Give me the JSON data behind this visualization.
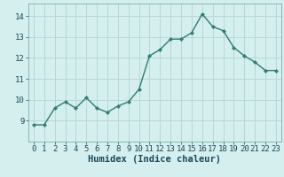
{
  "x": [
    0,
    1,
    2,
    3,
    4,
    5,
    6,
    7,
    8,
    9,
    10,
    11,
    12,
    13,
    14,
    15,
    16,
    17,
    18,
    19,
    20,
    21,
    22,
    23
  ],
  "y": [
    8.8,
    8.8,
    9.6,
    9.9,
    9.6,
    10.1,
    9.6,
    9.4,
    9.7,
    9.9,
    10.5,
    12.1,
    12.4,
    12.9,
    12.9,
    13.2,
    14.1,
    13.5,
    13.3,
    12.5,
    12.1,
    11.8,
    11.4,
    11.4
  ],
  "line_color": "#2e7d72",
  "marker_color": "#2e7d72",
  "bg_color": "#d5eeee",
  "grid_color": "#b8d8d8",
  "xlabel": "Humidex (Indice chaleur)",
  "xlim": [
    -0.5,
    23.5
  ],
  "ylim": [
    8.0,
    14.6
  ],
  "yticks": [
    9,
    10,
    11,
    12,
    13,
    14
  ],
  "xticks": [
    0,
    1,
    2,
    3,
    4,
    5,
    6,
    7,
    8,
    9,
    10,
    11,
    12,
    13,
    14,
    15,
    16,
    17,
    18,
    19,
    20,
    21,
    22,
    23
  ],
  "xlabel_fontsize": 7.5,
  "tick_fontsize": 6.5,
  "linewidth": 1.0,
  "markersize": 2.2
}
